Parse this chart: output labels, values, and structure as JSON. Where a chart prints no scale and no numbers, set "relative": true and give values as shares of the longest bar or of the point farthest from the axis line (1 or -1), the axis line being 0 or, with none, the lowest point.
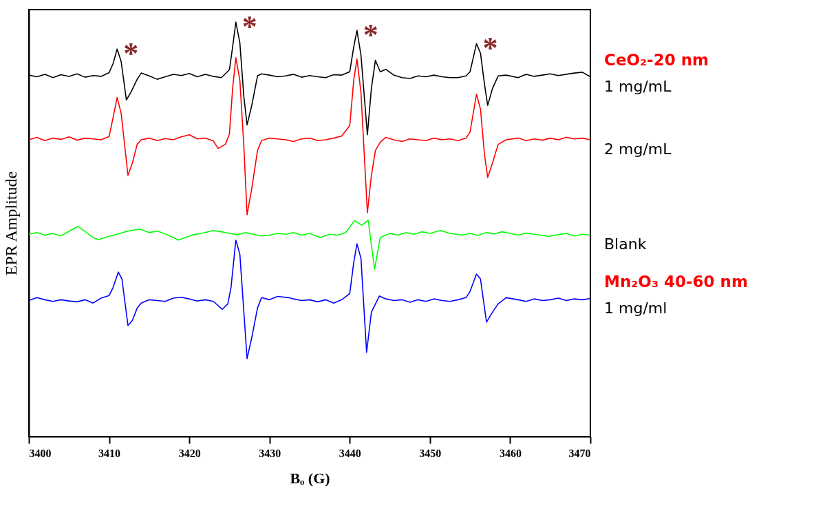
{
  "chart_data": {
    "type": "line",
    "relative": true,
    "xlabel": "Bₒ (G)",
    "ylabel": "EPR Amplitude",
    "xlim": [
      3400,
      3470
    ],
    "xticks": [
      3400,
      3410,
      3420,
      3430,
      3440,
      3450,
      3460,
      3470
    ],
    "grid": false,
    "marker": "none",
    "line_style": "solid",
    "annotations": [
      "CeO₂-20 nm",
      "Mn₂O₃ 40-60 nm",
      {
        "text": "*",
        "x": 3411,
        "y": 0.935
      },
      {
        "text": "*",
        "x": 3425.8,
        "y": 1.0
      },
      {
        "text": "*",
        "x": 3440.9,
        "y": 0.98
      },
      {
        "text": "*",
        "x": 3455.8,
        "y": 0.948
      }
    ],
    "series": [
      {
        "name": "1 mg/mL",
        "color": "#000000",
        "x": [
          3400,
          3401,
          3402,
          3403,
          3404,
          3405,
          3406,
          3407,
          3408,
          3409,
          3410,
          3410.5,
          3411,
          3411.5,
          3412.15,
          3412.7,
          3413.5,
          3414,
          3415,
          3416,
          3417,
          3418,
          3419,
          3420,
          3421,
          3422,
          3423,
          3424,
          3425,
          3425.4,
          3425.8,
          3426.3,
          3426.8,
          3427.2,
          3427.8,
          3428.5,
          3429,
          3430,
          3431,
          3432,
          3433,
          3434,
          3435,
          3436,
          3437,
          3438,
          3439,
          3440,
          3440.5,
          3440.9,
          3441.4,
          3442.2,
          3442.7,
          3443.2,
          3443.8,
          3444.5,
          3445.5,
          3446.5,
          3447.5,
          3448.5,
          3449.5,
          3450.5,
          3451.5,
          3452.5,
          3453.5,
          3454.5,
          3455,
          3455.8,
          3456.3,
          3456.8,
          3457.2,
          3457.8,
          3458.5,
          3459.5,
          3461,
          3462,
          3463,
          3464,
          3465,
          3466,
          3467,
          3468,
          3469,
          3470
        ],
        "values": [
          0.872,
          0.868,
          0.874,
          0.866,
          0.873,
          0.869,
          0.875,
          0.867,
          0.871,
          0.869,
          0.878,
          0.9,
          0.935,
          0.905,
          0.812,
          0.83,
          0.862,
          0.877,
          0.87,
          0.862,
          0.868,
          0.874,
          0.871,
          0.876,
          0.868,
          0.874,
          0.869,
          0.866,
          0.885,
          0.94,
          1.0,
          0.95,
          0.82,
          0.752,
          0.8,
          0.87,
          0.875,
          0.872,
          0.868,
          0.87,
          0.874,
          0.867,
          0.871,
          0.868,
          0.866,
          0.873,
          0.872,
          0.88,
          0.94,
          0.98,
          0.92,
          0.728,
          0.84,
          0.908,
          0.88,
          0.886,
          0.872,
          0.866,
          0.864,
          0.87,
          0.868,
          0.872,
          0.868,
          0.866,
          0.866,
          0.87,
          0.88,
          0.948,
          0.925,
          0.85,
          0.799,
          0.84,
          0.87,
          0.872,
          0.866,
          0.874,
          0.869,
          0.872,
          0.875,
          0.871,
          0.874,
          0.877,
          0.879,
          0.868
        ]
      },
      {
        "name": "2 mg/mL",
        "color": "#ff0000",
        "x": [
          3400,
          3401,
          3402,
          3403,
          3404,
          3405,
          3406,
          3407,
          3408,
          3409,
          3410,
          3410.5,
          3411,
          3411.5,
          3412.35,
          3412.9,
          3413.5,
          3414,
          3415,
          3416,
          3417,
          3418,
          3419,
          3420,
          3421,
          3422,
          3423,
          3423.6,
          3424.5,
          3425,
          3425.4,
          3425.8,
          3426.3,
          3426.8,
          3427.2,
          3427.8,
          3428.5,
          3429,
          3430,
          3431,
          3432,
          3433,
          3434,
          3435,
          3436,
          3437,
          3438,
          3439,
          3440,
          3440.5,
          3440.9,
          3441.4,
          3442.2,
          3442.7,
          3443.2,
          3443.8,
          3444.5,
          3445.5,
          3446.5,
          3447.5,
          3448.5,
          3449.5,
          3450.5,
          3451.5,
          3452.5,
          3453.5,
          3454.5,
          3455,
          3455.8,
          3456.3,
          3456.8,
          3457.2,
          3457.8,
          3458.5,
          3459.5,
          3461,
          3462,
          3463,
          3464,
          3465,
          3466,
          3467,
          3468,
          3469,
          3470
        ],
        "values": [
          0.716,
          0.722,
          0.714,
          0.72,
          0.717,
          0.723,
          0.715,
          0.72,
          0.718,
          0.716,
          0.724,
          0.77,
          0.818,
          0.78,
          0.63,
          0.66,
          0.705,
          0.716,
          0.72,
          0.714,
          0.719,
          0.716,
          0.723,
          0.728,
          0.718,
          0.72,
          0.713,
          0.695,
          0.705,
          0.73,
          0.84,
          0.914,
          0.86,
          0.7,
          0.535,
          0.6,
          0.69,
          0.714,
          0.72,
          0.718,
          0.716,
          0.712,
          0.718,
          0.72,
          0.714,
          0.716,
          0.72,
          0.725,
          0.75,
          0.86,
          0.911,
          0.83,
          0.54,
          0.63,
          0.69,
          0.71,
          0.722,
          0.716,
          0.712,
          0.718,
          0.716,
          0.714,
          0.72,
          0.716,
          0.718,
          0.714,
          0.72,
          0.735,
          0.826,
          0.79,
          0.68,
          0.625,
          0.66,
          0.705,
          0.716,
          0.72,
          0.714,
          0.718,
          0.715,
          0.72,
          0.716,
          0.722,
          0.718,
          0.72,
          0.716
        ]
      },
      {
        "name": "Blank",
        "color": "#00ff00",
        "x": [
          3400,
          3401,
          3402,
          3403,
          3404,
          3405,
          3406.1,
          3407,
          3408,
          3408.7,
          3410,
          3411,
          3412,
          3413,
          3413.9,
          3415,
          3416,
          3417,
          3418,
          3418.6,
          3419.5,
          3420.5,
          3421.5,
          3423,
          3424,
          3425,
          3426,
          3427,
          3428,
          3429,
          3430,
          3431,
          3432,
          3433,
          3434,
          3435,
          3436.3,
          3437.5,
          3438.5,
          3439.5,
          3440.6,
          3441.5,
          3442.3,
          3443.1,
          3443.8,
          3445,
          3446,
          3447,
          3448,
          3449,
          3450,
          3451.3,
          3452.5,
          3454,
          3455,
          3456,
          3457,
          3458,
          3459,
          3460,
          3461,
          3462,
          3463,
          3464.8,
          3466,
          3467,
          3468,
          3469,
          3470
        ],
        "values": [
          0.488,
          0.492,
          0.486,
          0.49,
          0.484,
          0.495,
          0.507,
          0.495,
          0.48,
          0.475,
          0.483,
          0.488,
          0.494,
          0.498,
          0.5,
          0.492,
          0.496,
          0.489,
          0.48,
          0.474,
          0.48,
          0.487,
          0.49,
          0.497,
          0.494,
          0.49,
          0.487,
          0.492,
          0.488,
          0.484,
          0.486,
          0.49,
          0.488,
          0.492,
          0.486,
          0.49,
          0.48,
          0.488,
          0.486,
          0.492,
          0.521,
          0.51,
          0.522,
          0.404,
          0.48,
          0.49,
          0.486,
          0.492,
          0.488,
          0.494,
          0.49,
          0.497,
          0.49,
          0.486,
          0.49,
          0.485,
          0.492,
          0.489,
          0.494,
          0.49,
          0.486,
          0.491,
          0.488,
          0.483,
          0.487,
          0.49,
          0.484,
          0.488,
          0.486
        ]
      },
      {
        "name": "1 mg/ml",
        "color": "#0000ff",
        "x": [
          3400,
          3401,
          3402,
          3403,
          3404,
          3405,
          3406,
          3407,
          3408,
          3409,
          3410,
          3410.5,
          3411.15,
          3411.6,
          3412.35,
          3412.9,
          3413.5,
          3414,
          3415,
          3416,
          3417,
          3418,
          3419,
          3420,
          3421,
          3422,
          3423,
          3424.1,
          3424.8,
          3425.2,
          3425.8,
          3426.3,
          3426.8,
          3427.2,
          3427.8,
          3428.5,
          3429,
          3430,
          3431,
          3432.4,
          3433,
          3434,
          3435,
          3436,
          3437,
          3438,
          3439,
          3440,
          3440.5,
          3440.9,
          3441.4,
          3442.1,
          3442.7,
          3443.7,
          3444.5,
          3445.5,
          3446.5,
          3447.5,
          3448.5,
          3449.5,
          3450.5,
          3451.5,
          3452.5,
          3453.5,
          3454.5,
          3455,
          3455.8,
          3456.3,
          3457.05,
          3457.8,
          3458.5,
          3459.5,
          3461,
          3462,
          3463,
          3464,
          3465,
          3466,
          3467,
          3468,
          3469,
          3470
        ],
        "values": [
          0.328,
          0.335,
          0.33,
          0.326,
          0.33,
          0.327,
          0.325,
          0.33,
          0.322,
          0.334,
          0.34,
          0.36,
          0.397,
          0.38,
          0.268,
          0.28,
          0.31,
          0.322,
          0.33,
          0.328,
          0.326,
          0.334,
          0.336,
          0.332,
          0.327,
          0.33,
          0.326,
          0.307,
          0.32,
          0.36,
          0.474,
          0.44,
          0.3,
          0.188,
          0.24,
          0.31,
          0.335,
          0.33,
          0.338,
          0.335,
          0.332,
          0.328,
          0.33,
          0.325,
          0.33,
          0.322,
          0.33,
          0.345,
          0.42,
          0.465,
          0.43,
          0.203,
          0.3,
          0.339,
          0.332,
          0.328,
          0.33,
          0.324,
          0.33,
          0.326,
          0.332,
          0.328,
          0.326,
          0.33,
          0.335,
          0.35,
          0.392,
          0.38,
          0.276,
          0.3,
          0.32,
          0.335,
          0.33,
          0.326,
          0.332,
          0.328,
          0.33,
          0.334,
          0.328,
          0.332,
          0.33,
          0.333
        ]
      }
    ]
  }
}
